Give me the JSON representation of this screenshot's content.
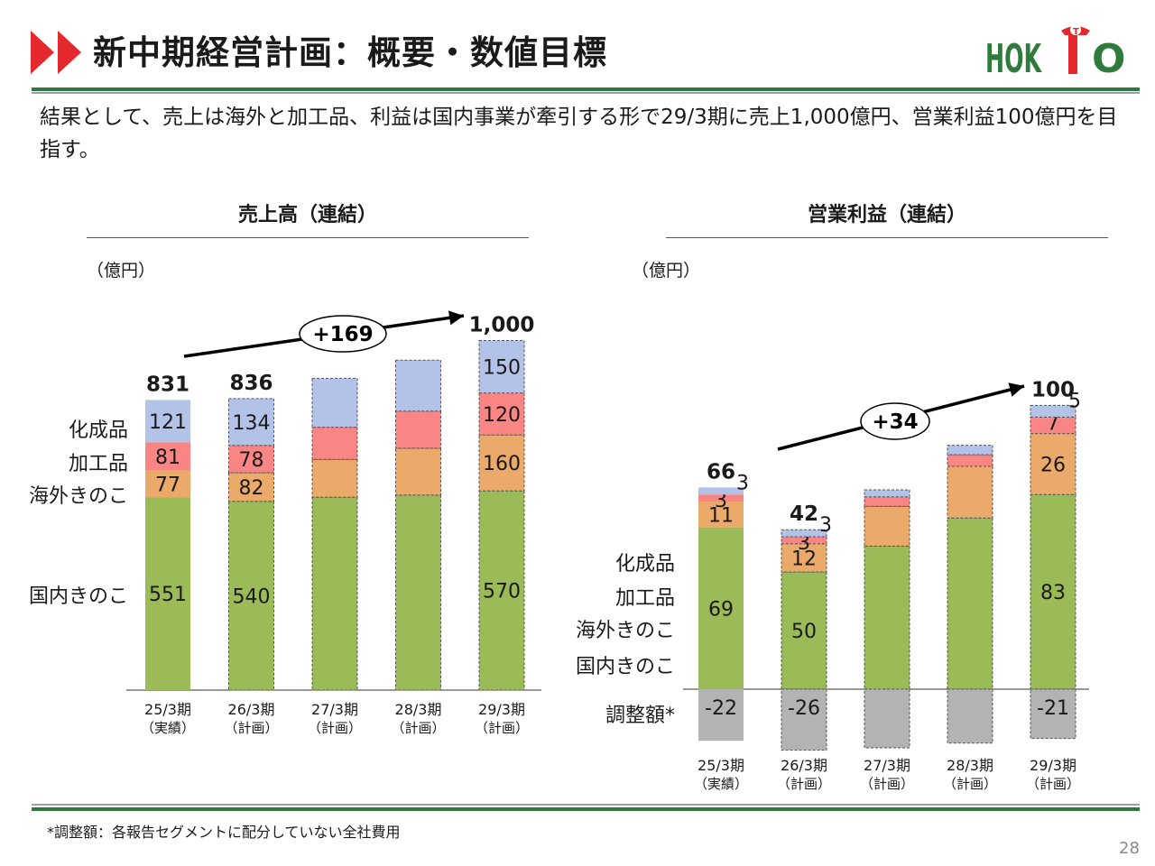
{
  "header": {
    "title": "新中期経営計画：概要・数値目標",
    "logo_text": "HOKTO"
  },
  "subtitle": "結果として、売上は海外と加工品、利益は国内事業が牽引する形で29/3期に売上1,000億円、営業利益100億円を目指す。",
  "footnote": "*調整額：各報告セグメントに配分していない全社費用",
  "page_number": "28",
  "colors": {
    "domestic": "#9bbb59",
    "overseas": "#ebaa6a",
    "processed": "#f98585",
    "chemical": "#b3c3e7",
    "adjustment": "#b3b3b3",
    "brand_green": "#2f7a3c",
    "brand_red": "#e3292d"
  },
  "chart_data": [
    {
      "type": "bar",
      "stacked": true,
      "title": "売上高（連結）",
      "unit": "（億円）",
      "categories": [
        "25/3期\n（実績）",
        "26/3期\n（計画）",
        "27/3期\n（計画）",
        "28/3期\n（計画）",
        "29/3期\n（計画）"
      ],
      "series": [
        {
          "name": "国内きのこ",
          "values": [
            551,
            540,
            552,
            558,
            570
          ]
        },
        {
          "name": "海外きのこ",
          "values": [
            77,
            82,
            108,
            134,
            160
          ]
        },
        {
          "name": "加工品",
          "values": [
            81,
            78,
            92,
            106,
            120
          ]
        },
        {
          "name": "化成品",
          "values": [
            121,
            134,
            140,
            146,
            150
          ]
        }
      ],
      "shown_labels": [
        [
          551,
          77,
          81,
          121
        ],
        [
          540,
          82,
          78,
          134
        ],
        [
          null,
          null,
          null,
          null
        ],
        [
          null,
          null,
          null,
          null
        ],
        [
          570,
          160,
          120,
          150
        ]
      ],
      "totals": [
        "831",
        "836",
        "",
        "",
        "1,000"
      ],
      "annotation": "+169",
      "ylim": [
        0,
        1000
      ]
    },
    {
      "type": "bar",
      "stacked": true,
      "title": "営業利益（連結）",
      "unit": "（億円）",
      "categories": [
        "25/3期\n（実績）",
        "26/3期\n（計画）",
        "27/3期\n（計画）",
        "28/3期\n（計画）",
        "29/3期\n（計画）"
      ],
      "series": [
        {
          "name": "国内きのこ",
          "values": [
            69,
            50,
            61,
            73,
            83
          ]
        },
        {
          "name": "海外きのこ",
          "values": [
            11,
            12,
            17,
            22,
            26
          ]
        },
        {
          "name": "加工品",
          "values": [
            3,
            3,
            4,
            5,
            7
          ]
        },
        {
          "name": "化成品",
          "values": [
            3,
            3,
            3,
            4,
            5
          ]
        },
        {
          "name": "調整額*",
          "values": [
            -22,
            -26,
            -25,
            -23,
            -21
          ]
        }
      ],
      "shown_labels": [
        [
          69,
          11,
          3,
          3,
          -22
        ],
        [
          50,
          12,
          3,
          3,
          -26
        ],
        [
          null,
          null,
          null,
          null,
          null
        ],
        [
          null,
          null,
          null,
          null,
          null
        ],
        [
          83,
          26,
          7,
          5,
          -21
        ]
      ],
      "totals": [
        "66",
        "42",
        "",
        "",
        "100"
      ],
      "annotation": "+34",
      "ylim": [
        -26,
        120
      ]
    }
  ]
}
